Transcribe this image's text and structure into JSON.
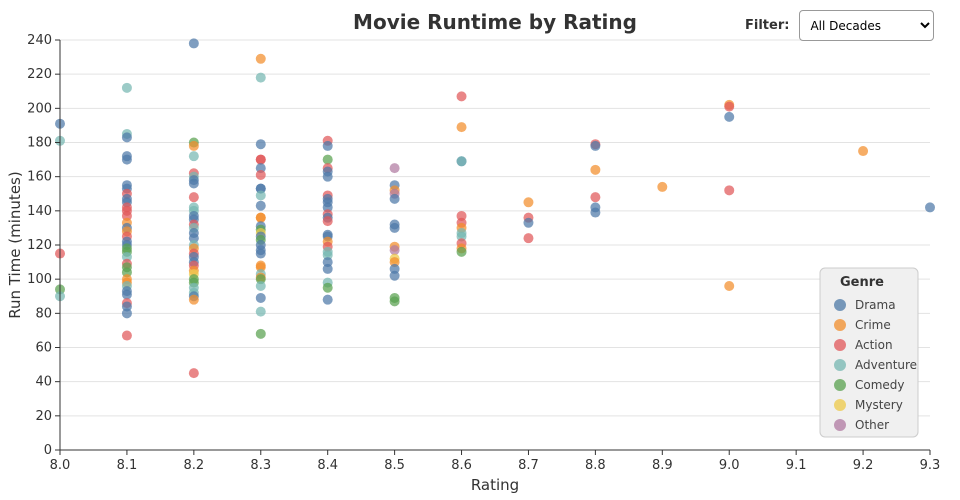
{
  "filter": {
    "label": "Filter:",
    "selected": "All Decades"
  },
  "chart_data": {
    "type": "scatter",
    "title": "Movie Runtime by Rating",
    "xlabel": "Rating",
    "ylabel": "Run Time (minutes)",
    "xlim": [
      8.0,
      9.3
    ],
    "ylim": [
      0,
      240
    ],
    "xticks": [
      "8.0",
      "8.1",
      "8.2",
      "8.3",
      "8.4",
      "8.5",
      "8.6",
      "8.7",
      "8.8",
      "8.9",
      "9.0",
      "9.1",
      "9.2",
      "9.3"
    ],
    "yticks": [
      "0",
      "20",
      "40",
      "60",
      "80",
      "100",
      "120",
      "140",
      "160",
      "180",
      "200",
      "220",
      "240"
    ],
    "grid": "horizontal",
    "legend": {
      "title": "Genre",
      "placement": "bottom-right"
    },
    "genres": [
      {
        "name": "Drama",
        "color": "#4e79a7"
      },
      {
        "name": "Crime",
        "color": "#f28e2b"
      },
      {
        "name": "Action",
        "color": "#e15759"
      },
      {
        "name": "Adventure",
        "color": "#76b7b2"
      },
      {
        "name": "Comedy",
        "color": "#59a14f"
      },
      {
        "name": "Mystery",
        "color": "#edc948"
      },
      {
        "name": "Other",
        "color": "#b07aa1"
      }
    ],
    "points": [
      [
        8.0,
        191,
        "Drama"
      ],
      [
        8.0,
        181,
        "Adventure"
      ],
      [
        8.0,
        115,
        "Action"
      ],
      [
        8.0,
        94,
        "Comedy"
      ],
      [
        8.0,
        90,
        "Adventure"
      ],
      [
        8.1,
        212,
        "Adventure"
      ],
      [
        8.1,
        185,
        "Adventure"
      ],
      [
        8.1,
        183,
        "Drama"
      ],
      [
        8.1,
        172,
        "Drama"
      ],
      [
        8.1,
        170,
        "Drama"
      ],
      [
        8.1,
        155,
        "Drama"
      ],
      [
        8.1,
        153,
        "Drama"
      ],
      [
        8.1,
        150,
        "Action"
      ],
      [
        8.1,
        147,
        "Drama"
      ],
      [
        8.1,
        145,
        "Drama"
      ],
      [
        8.1,
        142,
        "Action"
      ],
      [
        8.1,
        140,
        "Action"
      ],
      [
        8.1,
        137,
        "Action"
      ],
      [
        8.1,
        133,
        "Crime"
      ],
      [
        8.1,
        130,
        "Drama"
      ],
      [
        8.1,
        128,
        "Crime"
      ],
      [
        8.1,
        125,
        "Action"
      ],
      [
        8.1,
        122,
        "Drama"
      ],
      [
        8.1,
        120,
        "Drama"
      ],
      [
        8.1,
        118,
        "Comedy"
      ],
      [
        8.1,
        116,
        "Comedy"
      ],
      [
        8.1,
        113,
        "Adventure"
      ],
      [
        8.1,
        109,
        "Action"
      ],
      [
        8.1,
        107,
        "Comedy"
      ],
      [
        8.1,
        104,
        "Comedy"
      ],
      [
        8.1,
        100,
        "Crime"
      ],
      [
        8.1,
        98,
        "Crime"
      ],
      [
        8.1,
        96,
        "Adventure"
      ],
      [
        8.1,
        93,
        "Drama"
      ],
      [
        8.1,
        91,
        "Drama"
      ],
      [
        8.1,
        86,
        "Action"
      ],
      [
        8.1,
        84,
        "Drama"
      ],
      [
        8.1,
        80,
        "Drama"
      ],
      [
        8.1,
        67,
        "Action"
      ],
      [
        8.2,
        238,
        "Drama"
      ],
      [
        8.2,
        180,
        "Comedy"
      ],
      [
        8.2,
        178,
        "Crime"
      ],
      [
        8.2,
        172,
        "Adventure"
      ],
      [
        8.2,
        162,
        "Action"
      ],
      [
        8.2,
        160,
        "Adventure"
      ],
      [
        8.2,
        158,
        "Drama"
      ],
      [
        8.2,
        156,
        "Drama"
      ],
      [
        8.2,
        148,
        "Action"
      ],
      [
        8.2,
        142,
        "Adventure"
      ],
      [
        8.2,
        140,
        "Adventure"
      ],
      [
        8.2,
        137,
        "Drama"
      ],
      [
        8.2,
        135,
        "Drama"
      ],
      [
        8.2,
        132,
        "Action"
      ],
      [
        8.2,
        130,
        "Adventure"
      ],
      [
        8.2,
        127,
        "Drama"
      ],
      [
        8.2,
        124,
        "Drama"
      ],
      [
        8.2,
        120,
        "Adventure"
      ],
      [
        8.2,
        118,
        "Crime"
      ],
      [
        8.2,
        115,
        "Action"
      ],
      [
        8.2,
        113,
        "Drama"
      ],
      [
        8.2,
        110,
        "Drama"
      ],
      [
        8.2,
        108,
        "Action"
      ],
      [
        8.2,
        105,
        "Crime"
      ],
      [
        8.2,
        103,
        "Mystery"
      ],
      [
        8.2,
        100,
        "Comedy"
      ],
      [
        8.2,
        98,
        "Comedy"
      ],
      [
        8.2,
        95,
        "Adventure"
      ],
      [
        8.2,
        92,
        "Adventure"
      ],
      [
        8.2,
        90,
        "Drama"
      ],
      [
        8.2,
        88,
        "Crime"
      ],
      [
        8.2,
        45,
        "Action"
      ],
      [
        8.3,
        229,
        "Crime"
      ],
      [
        8.3,
        218,
        "Adventure"
      ],
      [
        8.3,
        179,
        "Drama"
      ],
      [
        8.3,
        170,
        "Action"
      ],
      [
        8.3,
        170,
        "Action"
      ],
      [
        8.3,
        165,
        "Drama"
      ],
      [
        8.3,
        161,
        "Action"
      ],
      [
        8.3,
        153,
        "Drama"
      ],
      [
        8.3,
        153,
        "Drama"
      ],
      [
        8.3,
        149,
        "Adventure"
      ],
      [
        8.3,
        143,
        "Drama"
      ],
      [
        8.3,
        136,
        "Crime"
      ],
      [
        8.3,
        136,
        "Crime"
      ],
      [
        8.3,
        131,
        "Drama"
      ],
      [
        8.3,
        129,
        "Comedy"
      ],
      [
        8.3,
        127,
        "Mystery"
      ],
      [
        8.3,
        125,
        "Drama"
      ],
      [
        8.3,
        123,
        "Comedy"
      ],
      [
        8.3,
        120,
        "Drama"
      ],
      [
        8.3,
        117,
        "Drama"
      ],
      [
        8.3,
        115,
        "Drama"
      ],
      [
        8.3,
        108,
        "Crime"
      ],
      [
        8.3,
        107,
        "Crime"
      ],
      [
        8.3,
        103,
        "Adventure"
      ],
      [
        8.3,
        101,
        "Crime"
      ],
      [
        8.3,
        100,
        "Comedy"
      ],
      [
        8.3,
        96,
        "Adventure"
      ],
      [
        8.3,
        89,
        "Drama"
      ],
      [
        8.3,
        81,
        "Adventure"
      ],
      [
        8.3,
        68,
        "Comedy"
      ],
      [
        8.4,
        181,
        "Action"
      ],
      [
        8.4,
        178,
        "Drama"
      ],
      [
        8.4,
        170,
        "Comedy"
      ],
      [
        8.4,
        165,
        "Action"
      ],
      [
        8.4,
        163,
        "Drama"
      ],
      [
        8.4,
        160,
        "Drama"
      ],
      [
        8.4,
        149,
        "Action"
      ],
      [
        8.4,
        147,
        "Drama"
      ],
      [
        8.4,
        145,
        "Drama"
      ],
      [
        8.4,
        142,
        "Drama"
      ],
      [
        8.4,
        138,
        "Action"
      ],
      [
        8.4,
        136,
        "Drama"
      ],
      [
        8.4,
        134,
        "Action"
      ],
      [
        8.4,
        126,
        "Drama"
      ],
      [
        8.4,
        125,
        "Drama"
      ],
      [
        8.4,
        122,
        "Crime"
      ],
      [
        8.4,
        119,
        "Action"
      ],
      [
        8.4,
        116,
        "Adventure"
      ],
      [
        8.4,
        114,
        "Adventure"
      ],
      [
        8.4,
        110,
        "Drama"
      ],
      [
        8.4,
        106,
        "Drama"
      ],
      [
        8.4,
        98,
        "Adventure"
      ],
      [
        8.4,
        95,
        "Comedy"
      ],
      [
        8.4,
        88,
        "Drama"
      ],
      [
        8.5,
        165,
        "Other"
      ],
      [
        8.5,
        155,
        "Drama"
      ],
      [
        8.5,
        152,
        "Crime"
      ],
      [
        8.5,
        150,
        "Other"
      ],
      [
        8.5,
        147,
        "Drama"
      ],
      [
        8.5,
        132,
        "Drama"
      ],
      [
        8.5,
        130,
        "Drama"
      ],
      [
        8.5,
        119,
        "Crime"
      ],
      [
        8.5,
        117,
        "Other"
      ],
      [
        8.5,
        112,
        "Mystery"
      ],
      [
        8.5,
        110,
        "Crime"
      ],
      [
        8.5,
        106,
        "Drama"
      ],
      [
        8.5,
        102,
        "Drama"
      ],
      [
        8.5,
        89,
        "Comedy"
      ],
      [
        8.5,
        87,
        "Comedy"
      ],
      [
        8.6,
        207,
        "Action"
      ],
      [
        8.6,
        189,
        "Crime"
      ],
      [
        8.6,
        169,
        "Drama"
      ],
      [
        8.6,
        169,
        "Adventure"
      ],
      [
        8.6,
        137,
        "Action"
      ],
      [
        8.6,
        133,
        "Action"
      ],
      [
        8.6,
        130,
        "Crime"
      ],
      [
        8.6,
        127,
        "Adventure"
      ],
      [
        8.6,
        125,
        "Adventure"
      ],
      [
        8.6,
        121,
        "Action"
      ],
      [
        8.6,
        118,
        "Crime"
      ],
      [
        8.6,
        116,
        "Comedy"
      ],
      [
        8.7,
        145,
        "Crime"
      ],
      [
        8.7,
        136,
        "Action"
      ],
      [
        8.7,
        133,
        "Drama"
      ],
      [
        8.7,
        124,
        "Action"
      ],
      [
        8.8,
        179,
        "Action"
      ],
      [
        8.8,
        178,
        "Drama"
      ],
      [
        8.8,
        164,
        "Crime"
      ],
      [
        8.8,
        148,
        "Action"
      ],
      [
        8.8,
        142,
        "Drama"
      ],
      [
        8.8,
        139,
        "Drama"
      ],
      [
        8.9,
        154,
        "Crime"
      ],
      [
        9.0,
        202,
        "Crime"
      ],
      [
        9.0,
        201,
        "Action"
      ],
      [
        9.0,
        195,
        "Drama"
      ],
      [
        9.0,
        152,
        "Action"
      ],
      [
        9.0,
        96,
        "Crime"
      ],
      [
        9.2,
        175,
        "Crime"
      ],
      [
        9.3,
        142,
        "Drama"
      ]
    ]
  }
}
